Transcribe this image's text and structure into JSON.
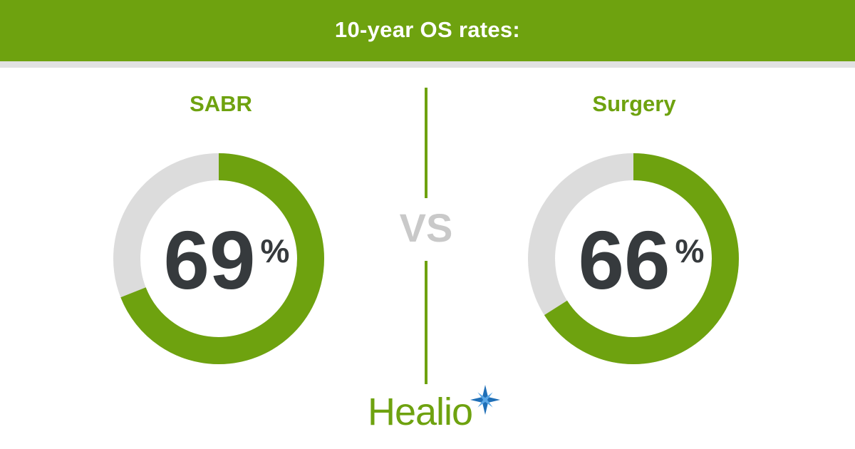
{
  "banner": {
    "title": "10-year OS rates:"
  },
  "vs_label": "VS",
  "logo_text": "Healio",
  "colors": {
    "accent": "#6ea20f",
    "track": "#dcdcdc",
    "value_text": "#363a3d",
    "vs": "#c9c9c9",
    "logo_star": "#1f6fb7"
  },
  "chart_data": [
    {
      "type": "pie",
      "title": "SABR",
      "categories": [
        "SABR"
      ],
      "values": [
        69
      ],
      "display": "69",
      "unit": "%"
    },
    {
      "type": "pie",
      "title": "Surgery",
      "categories": [
        "Surgery"
      ],
      "values": [
        66
      ],
      "display": "66",
      "unit": "%"
    }
  ]
}
